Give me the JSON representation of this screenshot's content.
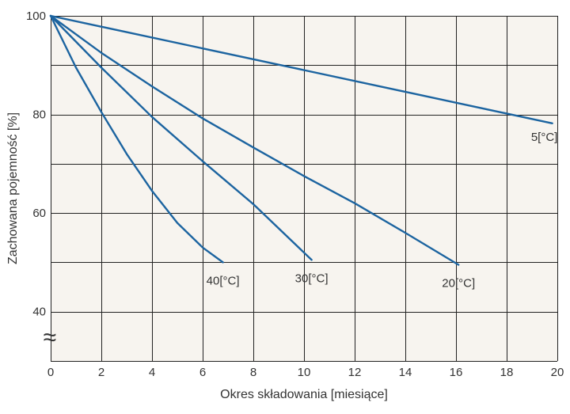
{
  "chart_data": {
    "type": "line",
    "title": "",
    "xlabel": "Okres składowania [miesiące]",
    "ylabel": "Zachowana pojemność [%]",
    "xlim": [
      0,
      20
    ],
    "ylim": [
      30,
      100
    ],
    "x_ticks": [
      0,
      2,
      4,
      6,
      8,
      10,
      12,
      14,
      16,
      18,
      20
    ],
    "y_ticks": [
      40,
      60,
      80,
      100
    ],
    "y_axis_break_symbol": "≈",
    "grid": true,
    "colors": {
      "background": "#f7f4ef",
      "grid": "#222222",
      "line": "#1c64a0"
    },
    "series": [
      {
        "name": "5[°C]",
        "label": "5[°C]",
        "x": [
          0,
          19.8
        ],
        "y": [
          100,
          78.2
        ]
      },
      {
        "name": "20[°C]",
        "label": "20[°C]",
        "x": [
          0,
          2,
          4,
          6,
          8,
          10,
          12,
          14,
          16.1
        ],
        "y": [
          100,
          92.5,
          85.7,
          79.2,
          73.3,
          67.5,
          62,
          56,
          49.5
        ]
      },
      {
        "name": "30[°C]",
        "label": "30[°C]",
        "x": [
          0,
          2,
          4,
          6,
          8,
          10.3
        ],
        "y": [
          100,
          89.5,
          79.5,
          70.5,
          61.8,
          50.5
        ]
      },
      {
        "name": "40[°C]",
        "label": "40[°C]",
        "x": [
          0,
          1,
          2,
          3,
          4,
          5,
          6,
          6.8
        ],
        "y": [
          100,
          89.5,
          80.5,
          72,
          64.5,
          58,
          53,
          50
        ]
      }
    ]
  }
}
